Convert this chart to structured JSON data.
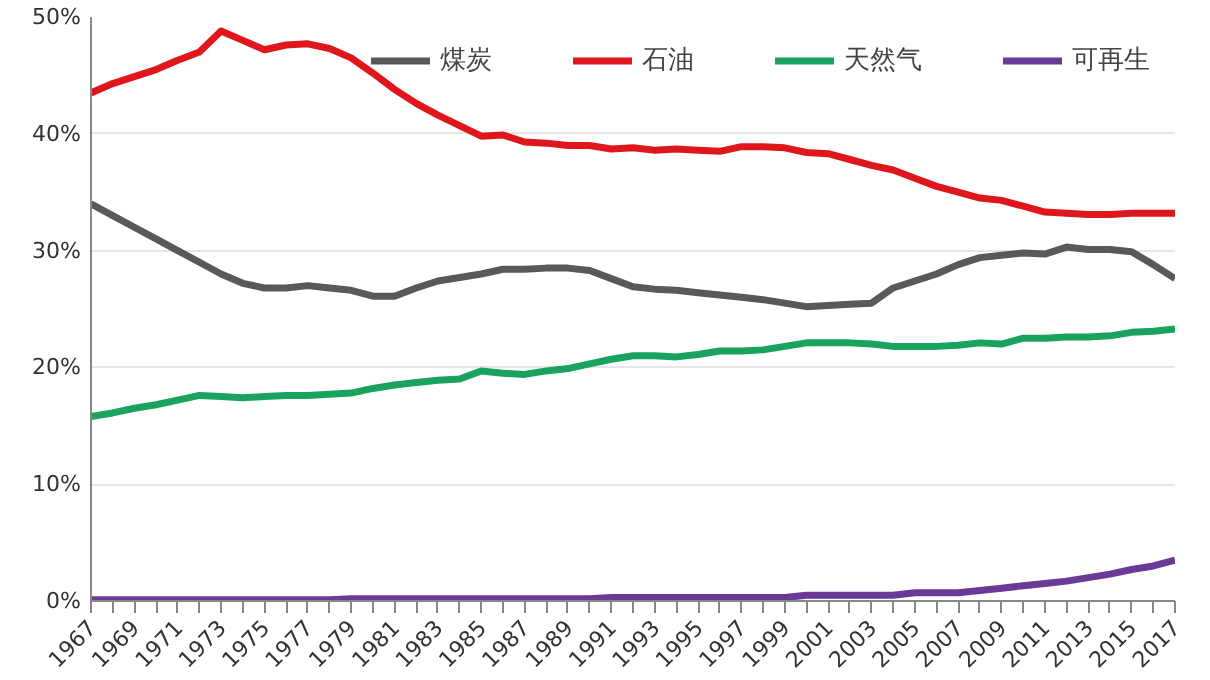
{
  "chart_data": {
    "type": "line",
    "x": [
      1967,
      1968,
      1969,
      1970,
      1971,
      1972,
      1973,
      1974,
      1975,
      1976,
      1977,
      1978,
      1979,
      1980,
      1981,
      1982,
      1983,
      1984,
      1985,
      1986,
      1987,
      1988,
      1989,
      1990,
      1991,
      1992,
      1993,
      1994,
      1995,
      1996,
      1997,
      1998,
      1999,
      2000,
      2001,
      2002,
      2003,
      2004,
      2005,
      2006,
      2007,
      2008,
      2009,
      2010,
      2011,
      2012,
      2013,
      2014,
      2015,
      2016,
      2017
    ],
    "series": [
      {
        "name": "煤炭",
        "color": "#595959",
        "values": [
          34.0,
          33.0,
          32.0,
          31.0,
          30.0,
          29.0,
          28.0,
          27.2,
          26.8,
          26.8,
          27.0,
          26.8,
          26.6,
          26.1,
          26.1,
          26.8,
          27.4,
          27.7,
          28.0,
          28.4,
          28.4,
          28.5,
          28.5,
          28.3,
          27.6,
          26.9,
          26.7,
          26.6,
          26.4,
          26.2,
          26.0,
          25.8,
          25.5,
          25.2,
          25.3,
          25.4,
          25.5,
          26.8,
          27.4,
          28.0,
          28.8,
          29.4,
          29.6,
          29.8,
          29.7,
          30.3,
          30.1,
          30.1,
          29.9,
          28.8,
          27.6
        ]
      },
      {
        "name": "石油",
        "color": "#e0161d",
        "values": [
          43.5,
          44.3,
          44.9,
          45.5,
          46.3,
          47.0,
          48.8,
          48.0,
          47.2,
          47.6,
          47.7,
          47.3,
          46.5,
          45.2,
          43.8,
          42.6,
          41.6,
          40.7,
          39.8,
          39.9,
          39.3,
          39.2,
          39.0,
          39.0,
          38.7,
          38.8,
          38.6,
          38.7,
          38.6,
          38.5,
          38.9,
          38.9,
          38.8,
          38.4,
          38.3,
          37.8,
          37.3,
          36.9,
          36.2,
          35.5,
          35.0,
          34.5,
          34.3,
          33.8,
          33.3,
          33.2,
          33.1,
          33.1,
          33.2,
          33.2,
          33.2
        ]
      },
      {
        "name": "天然气",
        "color": "#1aa35f",
        "values": [
          15.8,
          16.1,
          16.5,
          16.8,
          17.2,
          17.6,
          17.5,
          17.4,
          17.5,
          17.6,
          17.6,
          17.7,
          17.8,
          18.2,
          18.5,
          18.7,
          18.9,
          19.0,
          19.7,
          19.5,
          19.4,
          19.7,
          19.9,
          20.3,
          20.7,
          21.0,
          21.0,
          20.9,
          21.1,
          21.4,
          21.4,
          21.5,
          21.8,
          22.1,
          22.1,
          22.1,
          22.0,
          21.8,
          21.8,
          21.8,
          21.9,
          22.1,
          22.0,
          22.5,
          22.5,
          22.6,
          22.6,
          22.7,
          23.0,
          23.1,
          23.3
        ]
      },
      {
        "name": "可再生",
        "color": "#6b3a96",
        "values": [
          0.1,
          0.1,
          0.1,
          0.1,
          0.1,
          0.1,
          0.1,
          0.1,
          0.1,
          0.1,
          0.1,
          0.1,
          0.2,
          0.2,
          0.2,
          0.2,
          0.2,
          0.2,
          0.2,
          0.2,
          0.2,
          0.2,
          0.2,
          0.2,
          0.3,
          0.3,
          0.3,
          0.3,
          0.3,
          0.3,
          0.3,
          0.3,
          0.3,
          0.5,
          0.5,
          0.5,
          0.5,
          0.5,
          0.7,
          0.7,
          0.7,
          0.9,
          1.1,
          1.3,
          1.5,
          1.7,
          2.0,
          2.3,
          2.7,
          3.0,
          3.5
        ]
      }
    ],
    "xlim": [
      1967,
      2017
    ],
    "xticks": [
      1967,
      {
        "value": 1968,
        "label": null
      },
      1969,
      {
        "value": 1970,
        "label": null
      },
      1971,
      {
        "value": 1972,
        "label": null
      },
      1973,
      {
        "value": 1974,
        "label": null
      },
      1975,
      {
        "value": 1976,
        "label": null
      },
      1977,
      {
        "value": 1978,
        "label": null
      },
      1979,
      {
        "value": 1980,
        "label": null
      },
      1981,
      {
        "value": 1982,
        "label": null
      },
      1983,
      {
        "value": 1984,
        "label": null
      },
      1985,
      {
        "value": 1986,
        "label": null
      },
      1987,
      {
        "value": 1988,
        "label": null
      },
      1989,
      {
        "value": 1990,
        "label": null
      },
      1991,
      {
        "value": 1992,
        "label": null
      },
      1993,
      {
        "value": 1994,
        "label": null
      },
      1995,
      {
        "value": 1996,
        "label": null
      },
      1997,
      {
        "value": 1998,
        "label": null
      },
      1999,
      {
        "value": 2000,
        "label": null
      },
      2001,
      {
        "value": 2002,
        "label": null
      },
      2003,
      {
        "value": 2004,
        "label": null
      },
      2005,
      {
        "value": 2006,
        "label": null
      },
      2007,
      {
        "value": 2008,
        "label": null
      },
      2009,
      {
        "value": 2010,
        "label": null
      },
      2011,
      {
        "value": 2012,
        "label": null
      },
      2013,
      {
        "value": 2014,
        "label": null
      },
      2015,
      {
        "value": 2016,
        "label": null
      },
      2017
    ],
    "ylim": [
      0,
      50
    ],
    "yticks": [
      {
        "value": 0,
        "label": "0%"
      },
      {
        "value": 10,
        "label": "10%"
      },
      {
        "value": 20,
        "label": "20%"
      },
      {
        "value": 30,
        "label": "30%"
      },
      {
        "value": 40,
        "label": "40%"
      },
      {
        "value": 50,
        "label": "50%"
      }
    ],
    "grid": "y",
    "legend": "top right",
    "marker": "none",
    "line_style": "solid"
  }
}
